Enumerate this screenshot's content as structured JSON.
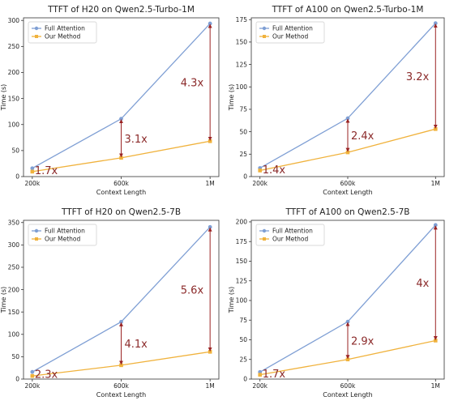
{
  "colors": {
    "full_attention": "#7f9fd4",
    "our_method": "#f0b23c",
    "arrow": "#9a2323"
  },
  "chart_data": [
    {
      "type": "line",
      "title": "TTFT of H20 on Qwen2.5-Turbo-1M",
      "xlabel": "Context Length",
      "ylabel": "Time (s)",
      "categories": [
        "200k",
        "600k",
        "1M"
      ],
      "yticks": [
        0,
        50,
        100,
        150,
        200,
        250,
        300
      ],
      "ylim": [
        0,
        305
      ],
      "legend": "top-left",
      "series": [
        {
          "name": "Full Attention",
          "values": [
            16,
            111,
            294
          ]
        },
        {
          "name": "Our Method",
          "values": [
            9.5,
            36,
            68
          ]
        }
      ],
      "ratios": [
        "1.7x",
        "3.1x",
        "4.3x"
      ]
    },
    {
      "type": "line",
      "title": "TTFT of A100 on Qwen2.5-Turbo-1M",
      "xlabel": "Context Length",
      "ylabel": "Time (s)",
      "categories": [
        "200k",
        "600k",
        "1M"
      ],
      "yticks": [
        0,
        25,
        50,
        75,
        100,
        125,
        150,
        175
      ],
      "ylim": [
        0,
        177
      ],
      "legend": "top-left",
      "series": [
        {
          "name": "Full Attention",
          "values": [
            9.5,
            65,
            171
          ]
        },
        {
          "name": "Our Method",
          "values": [
            6.8,
            27,
            53
          ]
        }
      ],
      "ratios": [
        "1.4x",
        "2.4x",
        "3.2x"
      ]
    },
    {
      "type": "line",
      "title": "TTFT of H20 on Qwen2.5-7B",
      "xlabel": "Context Length",
      "ylabel": "Time (s)",
      "categories": [
        "200k",
        "600k",
        "1M"
      ],
      "yticks": [
        0,
        50,
        100,
        150,
        200,
        250,
        300,
        350
      ],
      "ylim": [
        0,
        355
      ],
      "legend": "top-left",
      "series": [
        {
          "name": "Full Attention",
          "values": [
            16,
            128,
            340
          ]
        },
        {
          "name": "Our Method",
          "values": [
            7,
            31,
            61
          ]
        }
      ],
      "ratios": [
        "2.3x",
        "4.1x",
        "5.6x"
      ]
    },
    {
      "type": "line",
      "title": "TTFT of A100 on Qwen2.5-7B",
      "xlabel": "Context Length",
      "ylabel": "Time (s)",
      "categories": [
        "200k",
        "600k",
        "1M"
      ],
      "yticks": [
        0,
        25,
        50,
        75,
        100,
        125,
        150,
        175,
        200
      ],
      "ylim": [
        0,
        202
      ],
      "legend": "top-left",
      "series": [
        {
          "name": "Full Attention",
          "values": [
            9,
            73,
            196
          ]
        },
        {
          "name": "Our Method",
          "values": [
            5.5,
            25,
            49
          ]
        }
      ],
      "ratios": [
        "1.7x",
        "2.9x",
        "4x"
      ]
    }
  ]
}
